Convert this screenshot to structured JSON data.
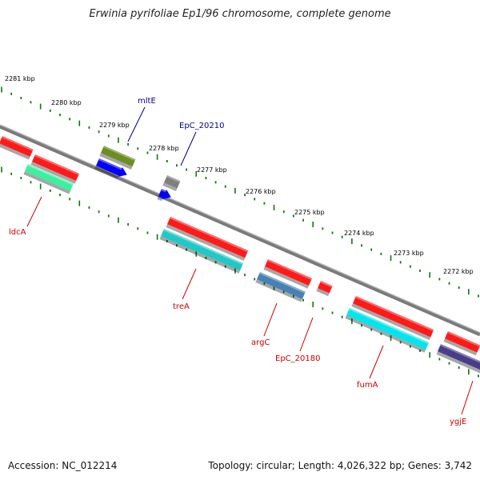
{
  "title": "Erwinia pyrifoliae Ep1/96 chromosome, complete genome",
  "accession": "Accession: NC_012214",
  "summary": "Topology: circular; Length: 4,026,322 bp; Genes: 3,742",
  "colors": {
    "backbone": "#7d7d7d",
    "tick": "#0a7a0a",
    "label_forward": "#00008b",
    "label_reverse": "#cc0000"
  },
  "scale_labels": [
    "2281 kbp",
    "2280 kbp",
    "2279 kbp",
    "2278 kbp",
    "2277 kbp",
    "2276 kbp",
    "2275 kbp",
    "2274 kbp",
    "2273 kbp",
    "2272 kbp"
  ],
  "genes": [
    {
      "name": "mltE",
      "color": "#6b8e23",
      "strand": "forward"
    },
    {
      "name": "EpC_20210",
      "color": "#808080",
      "strand": "forward"
    },
    {
      "name": "ldcA",
      "color": "#3cf0a0",
      "strand": "reverse"
    },
    {
      "name": "treA",
      "color": "#20c8c8",
      "strand": "reverse"
    },
    {
      "name": "argC",
      "color": "#4682b4",
      "strand": "reverse"
    },
    {
      "name": "EpC_20180",
      "color": "#ff2020",
      "strand": "reverse"
    },
    {
      "name": "fumA",
      "color": "#00e5ee",
      "strand": "reverse"
    },
    {
      "name": "ygjE",
      "color": "#483d8b",
      "strand": "reverse"
    }
  ]
}
